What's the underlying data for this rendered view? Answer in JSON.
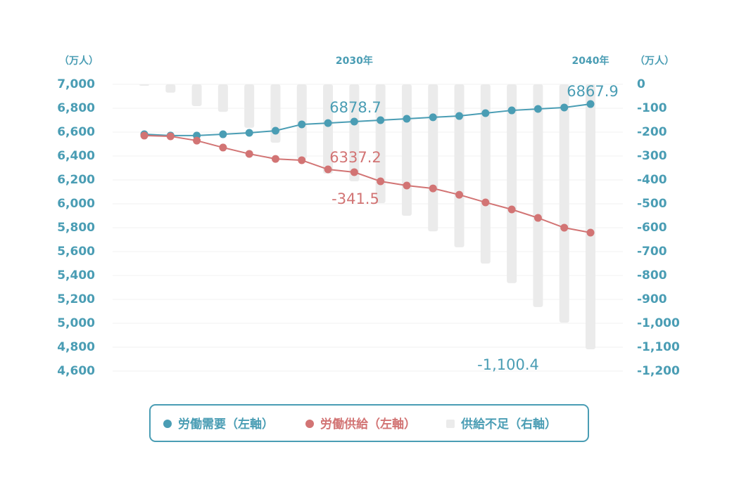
{
  "chart_data": {
    "type": "combo",
    "y_unit_label": "（万人）",
    "y2_unit_label": "（万人）",
    "categories": [
      null,
      null,
      null,
      null,
      null,
      null,
      null,
      null,
      "2030年",
      null,
      null,
      null,
      null,
      null,
      null,
      null,
      null,
      "2040年"
    ],
    "ylim": [
      4600,
      7000
    ],
    "yticks": [
      {
        "value": 4600,
        "label": "4,600"
      },
      {
        "value": 4800,
        "label": "4,800"
      },
      {
        "value": 5000,
        "label": "5,000"
      },
      {
        "value": 5200,
        "label": "5,200"
      },
      {
        "value": 5400,
        "label": "5,400"
      },
      {
        "value": 5600,
        "label": "5,600"
      },
      {
        "value": 5800,
        "label": "5,800"
      },
      {
        "value": 6000,
        "label": "6,000"
      },
      {
        "value": 6200,
        "label": "6,200"
      },
      {
        "value": 6400,
        "label": "6,400"
      },
      {
        "value": 6600,
        "label": "6,600"
      },
      {
        "value": 6800,
        "label": "6,800"
      },
      {
        "value": 7000,
        "label": "7,000"
      }
    ],
    "y2lim": [
      -1200,
      0
    ],
    "y2ticks": [
      {
        "value": -1200,
        "label": "-1,200"
      },
      {
        "value": -1100,
        "label": "-1,100"
      },
      {
        "value": -1000,
        "label": "-1,000"
      },
      -900,
      -800,
      -700,
      -600,
      -500,
      -400,
      -300,
      -200,
      -100,
      0
    ],
    "grid": true,
    "series": [
      {
        "name": "供給不足（右軸）",
        "kind": "bar",
        "axis": "y2",
        "color": "#ebebeb",
        "values": [
          -6,
          -35,
          -91,
          -115,
          -182,
          -244,
          -312,
          -374,
          -406,
          -497,
          -550,
          -615,
          -682,
          -750,
          -832,
          -932,
          -997,
          -1109
        ]
      },
      {
        "name": "労働需要（左軸）",
        "kind": "line",
        "color": "#4a9db4",
        "values": [
          6582,
          6571,
          6571,
          6582,
          6594,
          6612,
          6665,
          6676,
          6688,
          6700,
          6712,
          6724,
          6735,
          6759,
          6782,
          6794,
          6806,
          6835
        ]
      },
      {
        "name": "労働供給（左軸）",
        "kind": "line",
        "color": "#d27474",
        "values": [
          6571,
          6565,
          6529,
          6471,
          6418,
          6376,
          6365,
          6288,
          6265,
          6188,
          6153,
          6129,
          6076,
          6012,
          5953,
          5882,
          5800,
          5759
        ]
      }
    ],
    "annotations": [
      {
        "text": "6878.7",
        "color": "#4a9db4"
      },
      {
        "text": "6337.2",
        "color": "#d27474"
      },
      {
        "text": "-341.5",
        "color": "#d27474"
      },
      {
        "text": "6867.9",
        "color": "#4a9db4"
      },
      {
        "text": "-1,100.4",
        "color": "#4a9db4"
      }
    ]
  }
}
